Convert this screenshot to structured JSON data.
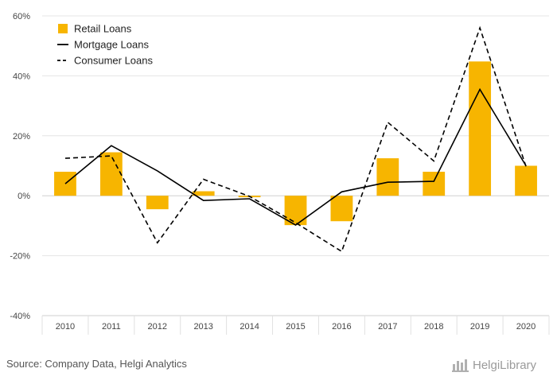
{
  "chart_data": {
    "type": "bar",
    "categories": [
      "2010",
      "2011",
      "2012",
      "2013",
      "2014",
      "2015",
      "2016",
      "2017",
      "2018",
      "2019",
      "2020"
    ],
    "ylim": [
      -40,
      60
    ],
    "yticks": [
      60,
      40,
      20,
      0,
      -20,
      -40
    ],
    "ytick_labels": [
      "60%",
      "40%",
      "20%",
      "0%",
      "-20%",
      "-40%"
    ],
    "grid": true,
    "legend_position": "top-left",
    "series": [
      {
        "name": "Retail Loans",
        "kind": "bar",
        "color": "#f7b500",
        "values": [
          8.0,
          14.5,
          -4.5,
          1.5,
          -0.5,
          -9.8,
          -8.5,
          12.5,
          8.0,
          44.8,
          10.0
        ]
      },
      {
        "name": "Mortgage Loans",
        "kind": "line",
        "style": "solid",
        "color": "#000000",
        "values": [
          4.0,
          16.7,
          8.3,
          -1.6,
          -1.0,
          -9.8,
          1.3,
          4.5,
          4.8,
          35.5,
          10.0
        ]
      },
      {
        "name": "Consumer Loans",
        "kind": "line",
        "style": "dashed",
        "color": "#000000",
        "values": [
          12.5,
          13.3,
          -15.7,
          5.5,
          -0.2,
          -9.0,
          -18.6,
          24.5,
          11.6,
          56.0,
          9.8
        ]
      }
    ]
  },
  "footer": {
    "source": "Source: Company Data, Helgi Analytics",
    "brand": "HelgiLibrary"
  }
}
